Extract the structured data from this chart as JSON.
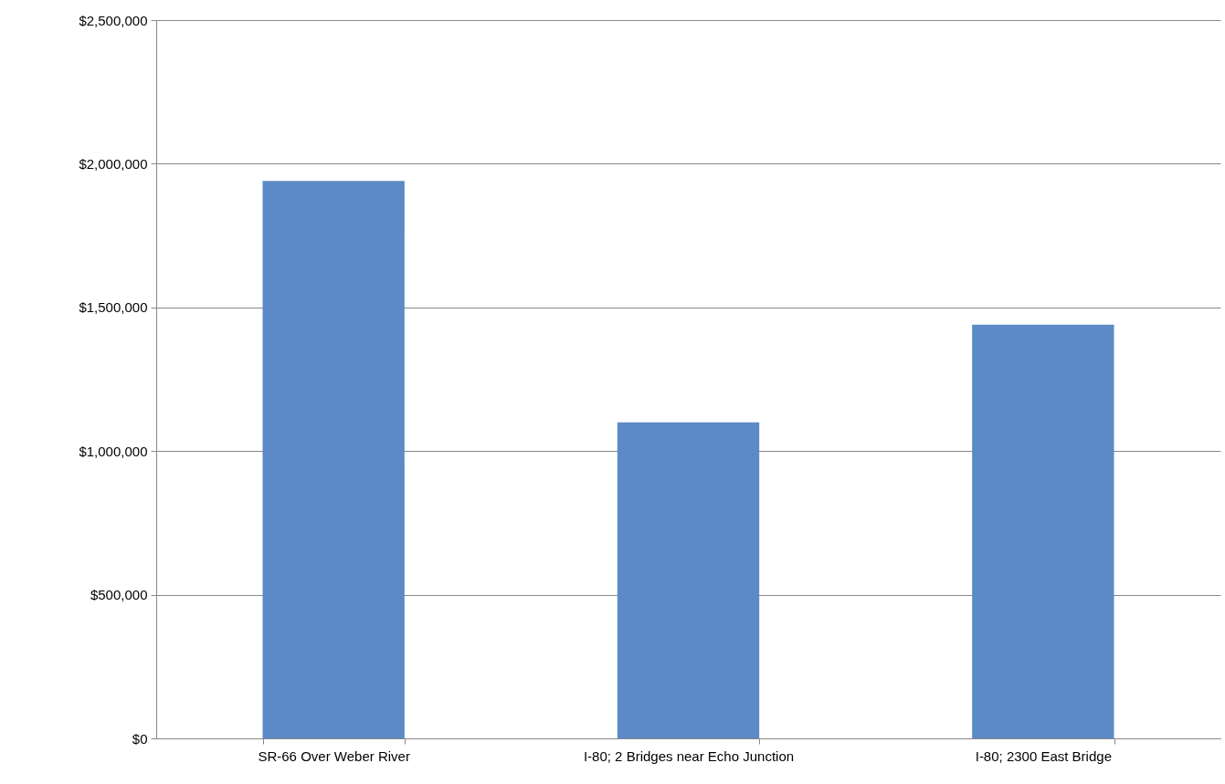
{
  "chart_data": {
    "type": "bar",
    "categories": [
      "SR-66 Over Weber River",
      "I-80; 2 Bridges near Echo Junction",
      "I-80; 2300 East Bridge"
    ],
    "values": [
      1940000,
      1100000,
      1440000
    ],
    "color": "#5b8ac6",
    "ylim": [
      0,
      2500000
    ],
    "yticks": [
      {
        "value": 0,
        "label": "$0"
      },
      {
        "value": 500000,
        "label": "$500,000"
      },
      {
        "value": 1000000,
        "label": "$1,000,000"
      },
      {
        "value": 1500000,
        "label": "$1,500,000"
      },
      {
        "value": 2000000,
        "label": "$2,000,000"
      },
      {
        "value": 2500000,
        "label": "$2,500,000"
      }
    ],
    "grid": "y"
  }
}
